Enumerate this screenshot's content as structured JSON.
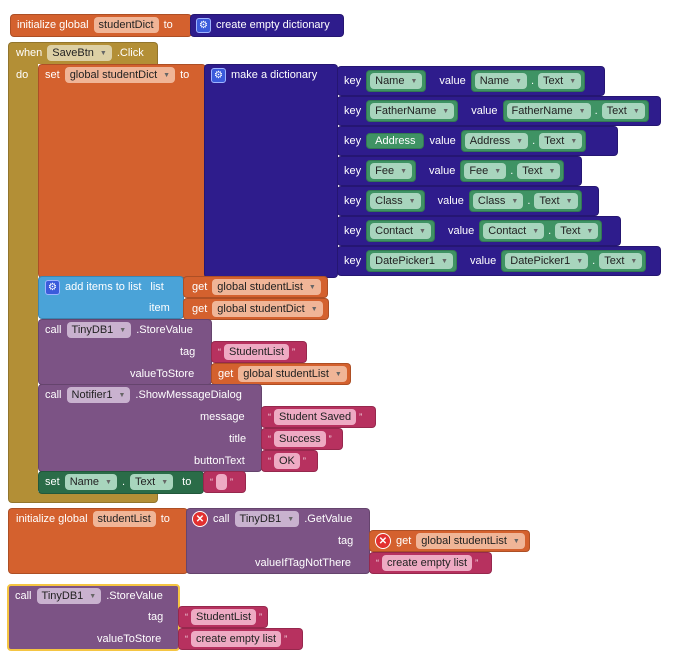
{
  "init_dict": {
    "label": "initialize global",
    "var": "studentDict",
    "to": "to",
    "value": "create empty dictionary",
    "icon": "gear-icon"
  },
  "event": {
    "when": "when",
    "component": "SaveBtn",
    "event": ".Click",
    "do": "do"
  },
  "set_dict": {
    "set": "set",
    "var": "global studentDict",
    "to": "to",
    "make": "make a dictionary"
  },
  "pairs": [
    {
      "key": "Name",
      "comp": "Name",
      "prop": "Text"
    },
    {
      "key": "FatherName",
      "comp": "FatherName",
      "prop": "Text"
    },
    {
      "key": "Address",
      "comp": "Address",
      "prop": "Text"
    },
    {
      "key": "Fee",
      "comp": "Fee",
      "prop": "Text"
    },
    {
      "key": "Class",
      "comp": "Class",
      "prop": "Text"
    },
    {
      "key": "Contact",
      "comp": "Contact",
      "prop": "Text"
    },
    {
      "key": "DatePicker1",
      "comp": "DatePicker1",
      "prop": "Text"
    }
  ],
  "labels": {
    "key": "key",
    "value": "value",
    "dot": ".",
    "get": "get",
    "call": "call",
    "tag": "tag",
    "valueToStore": "valueToStore",
    "quote_open": "“",
    "quote_close": "”"
  },
  "add_items": {
    "label": "add items to list",
    "list": "list",
    "item": "item",
    "list_var": "global studentList",
    "item_var": "global studentDict"
  },
  "store1": {
    "component": "TinyDB1",
    "method": ".StoreValue",
    "tag": "StudentList",
    "value": "global studentList"
  },
  "notifier": {
    "component": "Notifier1",
    "method": ".ShowMessageDialog",
    "message_label": "message",
    "message": "Student Saved",
    "title_label": "title",
    "title": "Success",
    "button_label": "buttonText",
    "button": "OK"
  },
  "set_name": {
    "set": "set",
    "component": "Name",
    "prop": "Text",
    "to": "to",
    "value": ""
  },
  "init_list": {
    "label": "initialize global",
    "var": "studentList",
    "to": "to",
    "component": "TinyDB1",
    "method": ".GetValue",
    "tag_var": "global studentList",
    "default_label": "valueIfTagNotThere",
    "default": "create empty list"
  },
  "store2": {
    "component": "TinyDB1",
    "method": ".StoreValue",
    "tag": "StudentList",
    "value": "create empty list"
  }
}
